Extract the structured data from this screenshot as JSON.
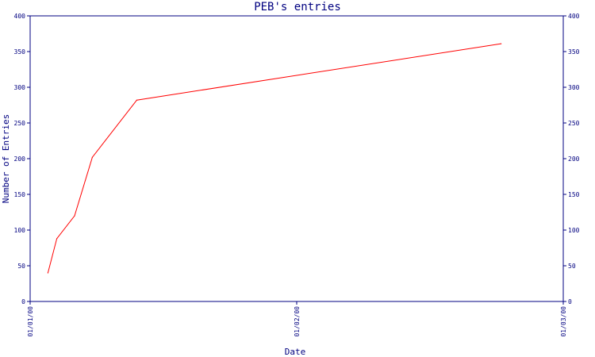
{
  "chart_data": {
    "type": "line",
    "title": "PEB's entries",
    "xlabel": "Date",
    "ylabel": "Number of Entries",
    "x_ticks": [
      "01/01/00",
      "01/02/00",
      "01/03/00"
    ],
    "x_range": [
      "2000-01-01",
      "2000-03-01"
    ],
    "ylim": [
      0,
      400
    ],
    "y_ticks": [
      0,
      50,
      100,
      150,
      200,
      250,
      300,
      350,
      400
    ],
    "grid": false,
    "series": [
      {
        "points": [
          {
            "x": "2000-01-03",
            "y": 40
          },
          {
            "x": "2000-01-04",
            "y": 88
          },
          {
            "x": "2000-01-06",
            "y": 120
          },
          {
            "x": "2000-01-08",
            "y": 202
          },
          {
            "x": "2000-01-13",
            "y": 282
          },
          {
            "x": "2000-02-23",
            "y": 361
          }
        ]
      }
    ]
  },
  "colors": {
    "axis": "#000080",
    "text": "#000080",
    "line": "#ff0000",
    "background": "#ffffff"
  }
}
